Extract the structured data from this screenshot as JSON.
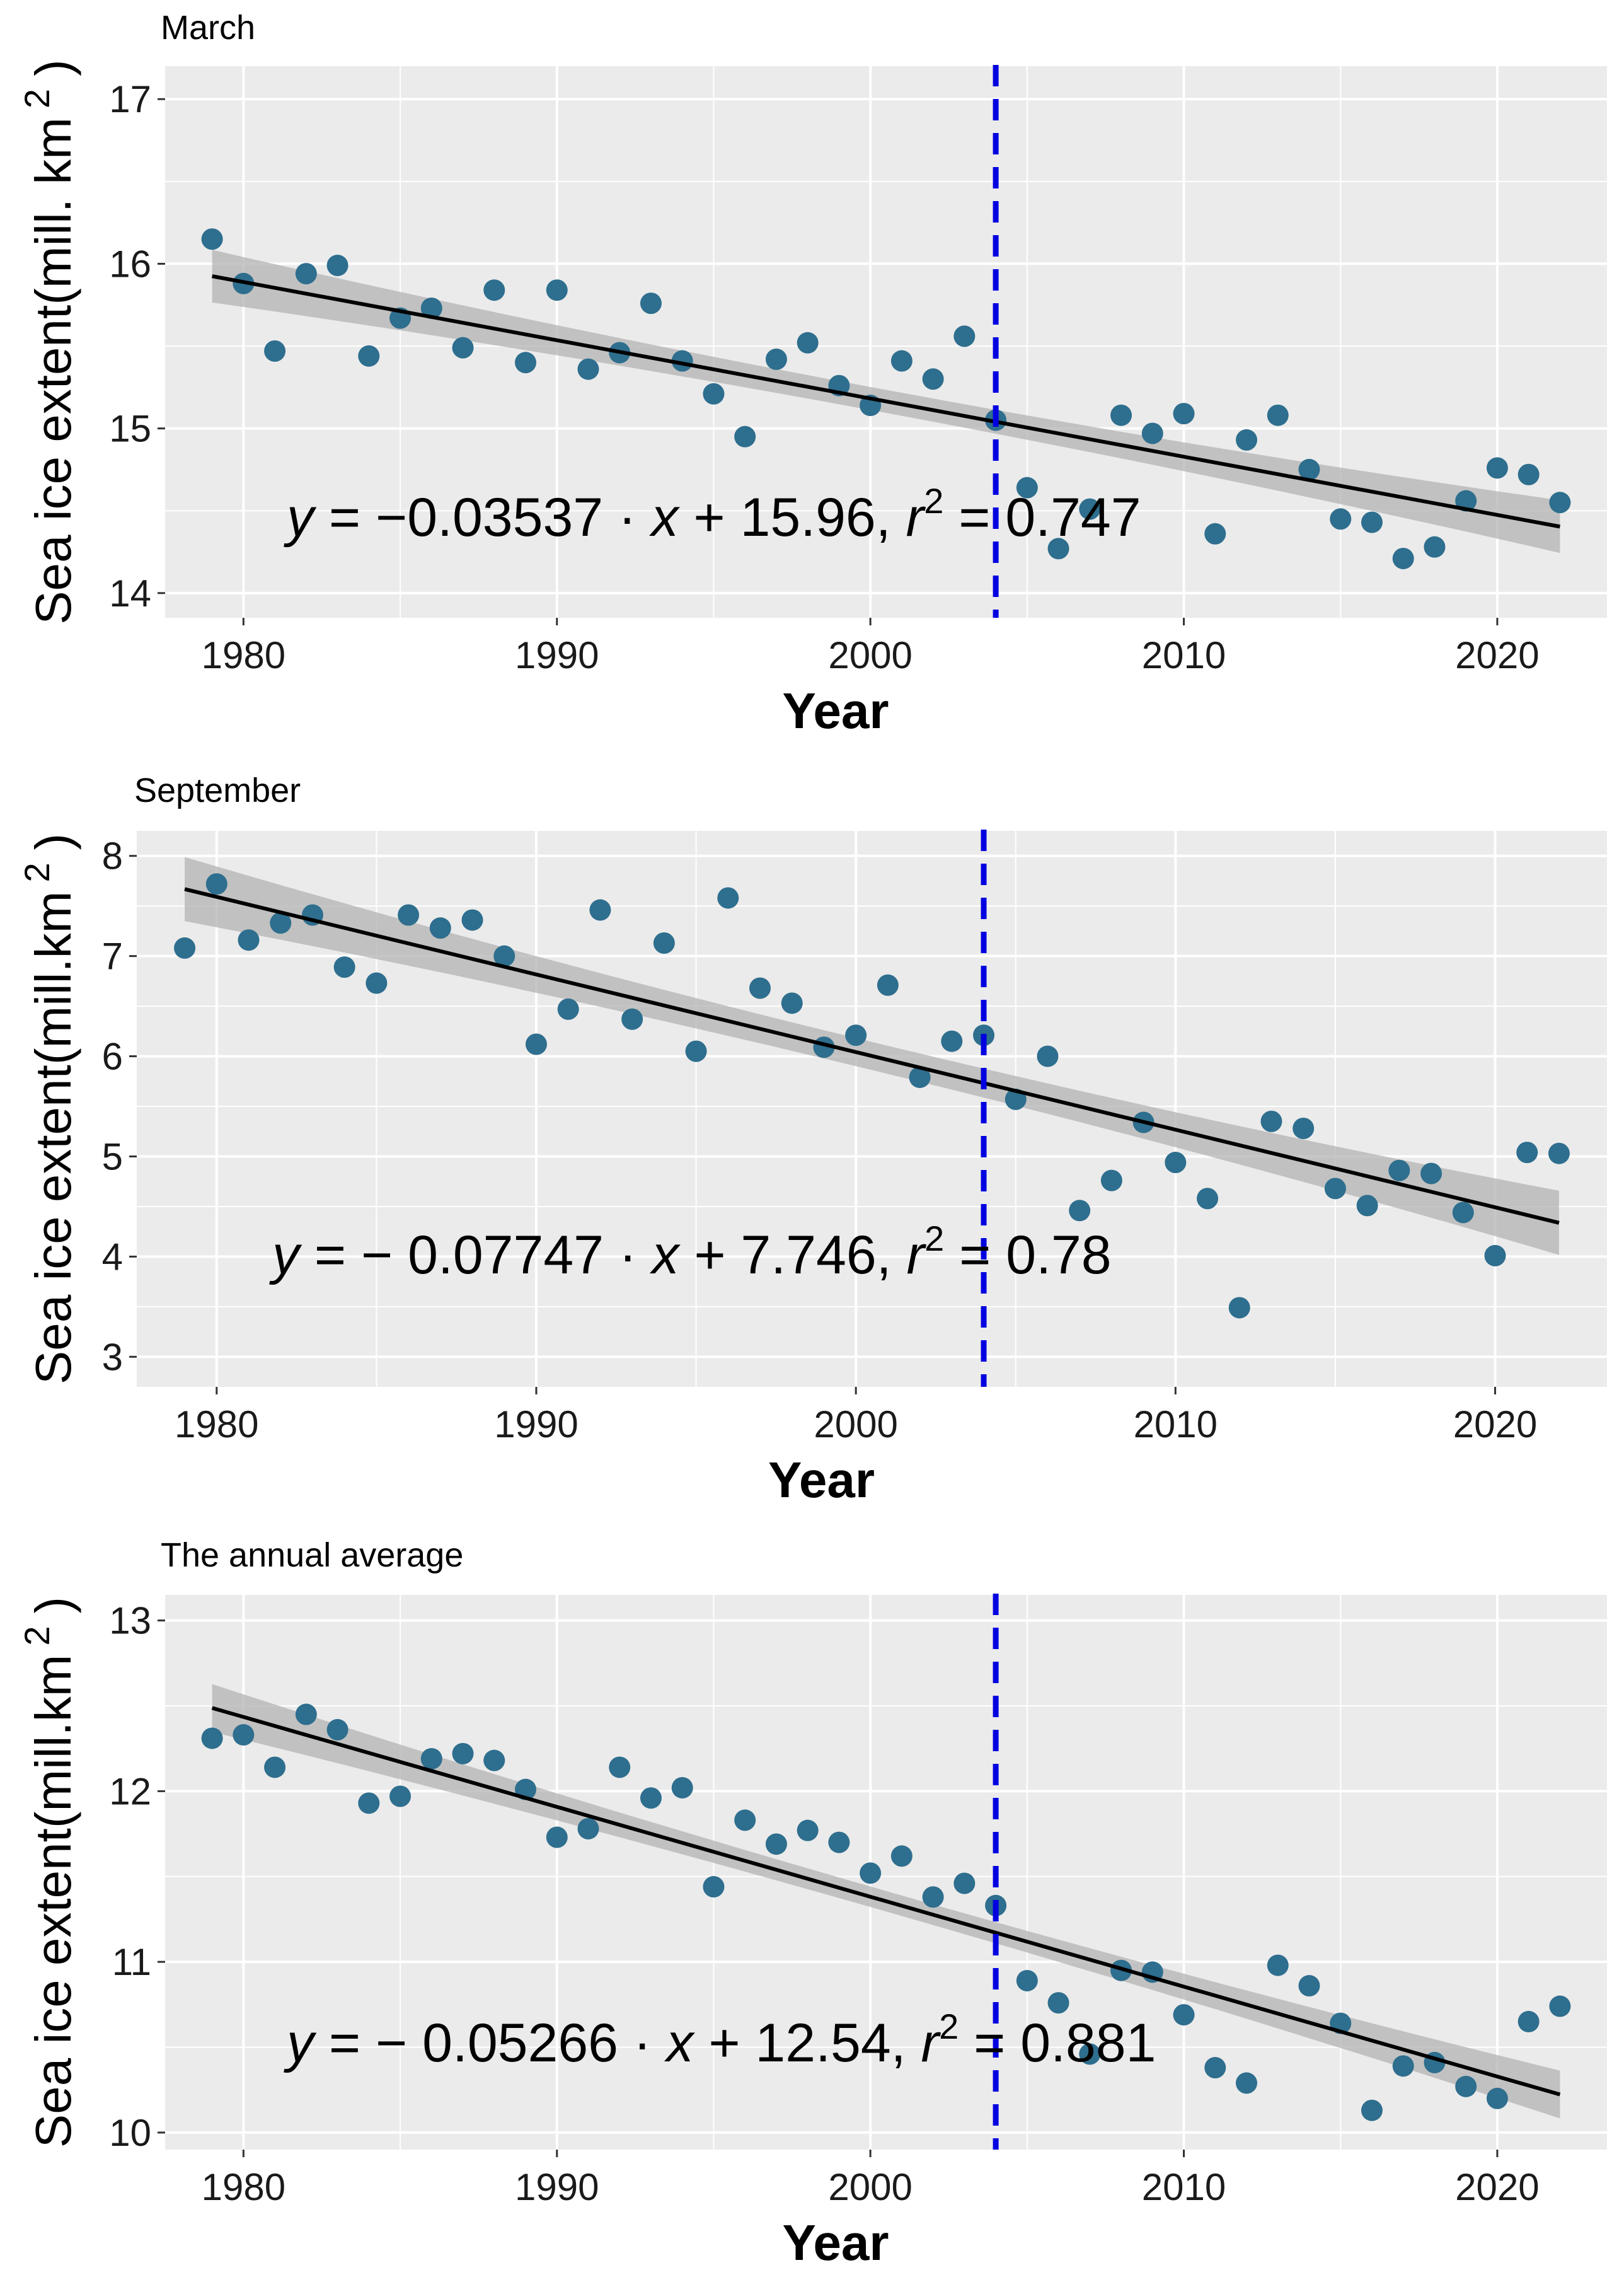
{
  "chart_data": [
    {
      "type": "scatter",
      "title": "March",
      "xlabel": "Year",
      "ylabel": "Sea ice extent(mill. km",
      "ylabel_sup": "2",
      "ylabel_close": ")",
      "xlim": [
        1977.5,
        2023.5
      ],
      "ylim": [
        13.85,
        17.2
      ],
      "xticks": [
        1980,
        1990,
        2000,
        2010,
        2020
      ],
      "yticks": [
        14,
        15,
        16,
        17
      ],
      "vline_x": 2004,
      "fit": {
        "slope": -0.03537,
        "intercept": 15.96,
        "r2": 0.747,
        "x0": 1978
      },
      "band_halfwidth_ends": 0.16,
      "band_halfwidth_mid": 0.07,
      "equation": {
        "lhs": "y",
        "rhs1": " = −0.03537 · ",
        "x": "x",
        "rhs2": " + 15.96,  ",
        "r": "r",
        "sup": "2",
        "rhs3": " = 0.747"
      },
      "series": [
        {
          "name": "extent",
          "x": [
            1979,
            1980,
            1981,
            1982,
            1983,
            1984,
            1985,
            1986,
            1987,
            1988,
            1989,
            1990,
            1991,
            1992,
            1993,
            1994,
            1995,
            1996,
            1997,
            1998,
            1999,
            2000,
            2001,
            2002,
            2003,
            2004,
            2005,
            2006,
            2007,
            2008,
            2009,
            2010,
            2011,
            2012,
            2013,
            2014,
            2015,
            2016,
            2017,
            2018,
            2019,
            2020,
            2021,
            2022
          ],
          "y": [
            16.15,
            15.88,
            15.47,
            15.94,
            15.99,
            15.44,
            15.67,
            15.73,
            15.49,
            15.84,
            15.4,
            15.84,
            15.36,
            15.46,
            15.76,
            15.41,
            15.21,
            14.95,
            15.42,
            15.52,
            15.26,
            15.14,
            15.41,
            15.3,
            15.56,
            15.05,
            14.64,
            14.27,
            14.51,
            15.08,
            14.97,
            15.09,
            14.36,
            14.93,
            15.08,
            14.75,
            14.45,
            14.43,
            14.21,
            14.28,
            14.56,
            14.76,
            14.72,
            14.55
          ]
        }
      ]
    },
    {
      "type": "scatter",
      "title": "September",
      "xlabel": "Year",
      "ylabel": "Sea ice extent(mill.km",
      "ylabel_sup": "2",
      "ylabel_close": ")",
      "xlim": [
        1977.5,
        2023.5
      ],
      "ylim": [
        2.7,
        8.25
      ],
      "xticks": [
        1980,
        1990,
        2000,
        2010,
        2020
      ],
      "yticks": [
        3,
        4,
        5,
        6,
        7,
        8
      ],
      "vline_x": 2004,
      "fit": {
        "slope": -0.07747,
        "intercept": 7.746,
        "r2": 0.78,
        "x0": 1978
      },
      "band_halfwidth_ends": 0.32,
      "band_halfwidth_mid": 0.14,
      "equation": {
        "lhs": "y",
        "rhs1": " = − 0.07747 · ",
        "x": "x",
        "rhs2": " + 7.746,  ",
        "r": "r",
        "sup": "2",
        "rhs3": " = 0.78"
      },
      "series": [
        {
          "name": "extent",
          "x": [
            1979,
            1980,
            1981,
            1982,
            1983,
            1984,
            1985,
            1986,
            1987,
            1988,
            1989,
            1990,
            1991,
            1992,
            1993,
            1994,
            1995,
            1996,
            1997,
            1998,
            1999,
            2000,
            2001,
            2002,
            2003,
            2004,
            2005,
            2006,
            2007,
            2008,
            2009,
            2010,
            2011,
            2012,
            2013,
            2014,
            2015,
            2016,
            2017,
            2018,
            2019,
            2020,
            2021,
            2022
          ],
          "y": [
            7.08,
            7.72,
            7.16,
            7.33,
            7.41,
            6.89,
            6.73,
            7.41,
            7.28,
            7.36,
            7.0,
            6.12,
            6.47,
            7.46,
            6.37,
            7.13,
            6.05,
            7.58,
            6.68,
            6.53,
            6.09,
            6.21,
            6.71,
            5.79,
            6.15,
            6.21,
            5.57,
            6.0,
            4.46,
            4.76,
            5.34,
            4.94,
            4.58,
            3.49,
            5.35,
            5.28,
            4.68,
            4.51,
            4.86,
            4.83,
            4.44,
            4.01,
            5.04,
            5.03
          ]
        }
      ]
    },
    {
      "type": "scatter",
      "title": "The annual average",
      "xlabel": "Year",
      "ylabel": "Sea ice extent(mill.km",
      "ylabel_sup": "2",
      "ylabel_close": ")",
      "xlim": [
        1977.5,
        2023.5
      ],
      "ylim": [
        9.9,
        13.15
      ],
      "xticks": [
        1980,
        1990,
        2000,
        2010,
        2020
      ],
      "yticks": [
        10,
        11,
        12,
        13
      ],
      "vline_x": 2004,
      "fit": {
        "slope": -0.05266,
        "intercept": 12.54,
        "r2": 0.881,
        "x0": 1978
      },
      "band_halfwidth_ends": 0.14,
      "band_halfwidth_mid": 0.06,
      "equation": {
        "lhs": "y",
        "rhs1": " = − 0.05266 · ",
        "x": "x",
        "rhs2": " + 12.54,  ",
        "r": "r",
        "sup": "2",
        "rhs3": " = 0.881"
      },
      "series": [
        {
          "name": "extent",
          "x": [
            1979,
            1980,
            1981,
            1982,
            1983,
            1984,
            1985,
            1986,
            1987,
            1988,
            1989,
            1990,
            1991,
            1992,
            1993,
            1994,
            1995,
            1996,
            1997,
            1998,
            1999,
            2000,
            2001,
            2002,
            2003,
            2004,
            2005,
            2006,
            2007,
            2008,
            2009,
            2010,
            2011,
            2012,
            2013,
            2014,
            2015,
            2016,
            2017,
            2018,
            2019,
            2020,
            2021,
            2022
          ],
          "y": [
            12.31,
            12.33,
            12.14,
            12.45,
            12.36,
            11.93,
            11.97,
            12.19,
            12.22,
            12.18,
            12.01,
            11.73,
            11.78,
            12.14,
            11.96,
            12.02,
            11.44,
            11.83,
            11.69,
            11.77,
            11.7,
            11.52,
            11.62,
            11.38,
            11.46,
            11.33,
            10.89,
            10.76,
            10.46,
            10.95,
            10.94,
            10.69,
            10.38,
            10.29,
            10.98,
            10.86,
            10.64,
            10.13,
            10.39,
            10.41,
            10.27,
            10.2,
            10.65,
            10.74
          ]
        }
      ]
    }
  ],
  "colors": {
    "panel_bg": "#ebebeb",
    "grid": "#ffffff",
    "point": "#2e6e8e",
    "fit": "#000000",
    "band": "#b3b3b3",
    "vline": "#0000e0"
  }
}
